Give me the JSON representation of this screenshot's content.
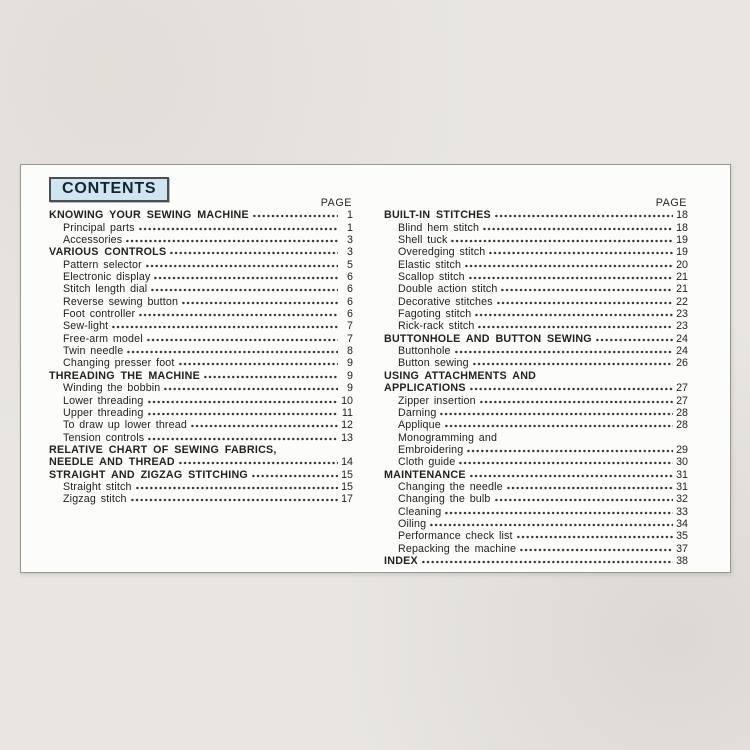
{
  "contents_label": "CONTENTS",
  "colors": {
    "contents_box_bg": "#cfe5f1",
    "sheet_bg": "#fcfcfa",
    "backdrop_bg": "#e9e6e2",
    "text": "#222220"
  },
  "columns": [
    {
      "page_label": "PAGE",
      "rows": [
        {
          "text": "KNOWING YOUR SEWING MACHINE",
          "style": "h",
          "page": "1"
        },
        {
          "text": "Principal parts",
          "style": "sub",
          "page": "1"
        },
        {
          "text": "Accessories",
          "style": "sub",
          "page": "3"
        },
        {
          "text": "VARIOUS CONTROLS",
          "style": "h",
          "page": "3"
        },
        {
          "text": "Pattern selector",
          "style": "sub",
          "page": "5"
        },
        {
          "text": "Electronic display",
          "style": "sub",
          "page": "6"
        },
        {
          "text": "Stitch length dial",
          "style": "sub",
          "page": "6"
        },
        {
          "text": "Reverse sewing button",
          "style": "sub",
          "page": "6"
        },
        {
          "text": "Foot controller",
          "style": "sub",
          "page": "6"
        },
        {
          "text": "Sew-light",
          "style": "sub",
          "page": "7"
        },
        {
          "text": "Free-arm model",
          "style": "sub",
          "page": "7"
        },
        {
          "text": "Twin needle",
          "style": "sub",
          "page": "8"
        },
        {
          "text": "Changing presser foot",
          "style": "sub",
          "page": "9"
        },
        {
          "text": "THREADING THE MACHINE",
          "style": "h",
          "page": "9"
        },
        {
          "text": "Winding the bobbin",
          "style": "sub",
          "page": "9"
        },
        {
          "text": "Lower threading",
          "style": "sub",
          "page": "10"
        },
        {
          "text": "Upper threading",
          "style": "sub",
          "page": "11"
        },
        {
          "text": "To draw up lower thread",
          "style": "sub",
          "page": "12"
        },
        {
          "text": "Tension controls",
          "style": "sub",
          "page": "13"
        },
        {
          "text": "RELATIVE CHART OF SEWING FABRICS,",
          "style": "h",
          "page": null
        },
        {
          "text": "NEEDLE AND THREAD",
          "style": "h",
          "page": "14"
        },
        {
          "text": "STRAIGHT AND ZIGZAG STITCHING",
          "style": "h",
          "page": "15"
        },
        {
          "text": "Straight stitch",
          "style": "sub",
          "page": "15"
        },
        {
          "text": "Zigzag stitch",
          "style": "sub",
          "page": "17"
        }
      ]
    },
    {
      "page_label": "PAGE",
      "rows": [
        {
          "text": "BUILT-IN STITCHES",
          "style": "h",
          "page": "18"
        },
        {
          "text": "Blind hem stitch",
          "style": "sub",
          "page": "18"
        },
        {
          "text": "Shell tuck",
          "style": "sub",
          "page": "19"
        },
        {
          "text": "Overedging stitch",
          "style": "sub",
          "page": "19"
        },
        {
          "text": "Elastic stitch",
          "style": "sub",
          "page": "20"
        },
        {
          "text": "Scallop stitch",
          "style": "sub",
          "page": "21"
        },
        {
          "text": "Double action stitch",
          "style": "sub",
          "page": "21"
        },
        {
          "text": "Decorative stitches",
          "style": "sub",
          "page": "22"
        },
        {
          "text": "Fagoting stitch",
          "style": "sub",
          "page": "23"
        },
        {
          "text": "Rick-rack stitch",
          "style": "sub",
          "page": "23"
        },
        {
          "text": "BUTTONHOLE AND BUTTON SEWING",
          "style": "h",
          "page": "24"
        },
        {
          "text": "Buttonhole",
          "style": "sub",
          "page": "24"
        },
        {
          "text": "Button sewing",
          "style": "sub",
          "page": "26"
        },
        {
          "text": "USING ATTACHMENTS AND",
          "style": "h",
          "page": null
        },
        {
          "text": "APPLICATIONS",
          "style": "h",
          "page": "27"
        },
        {
          "text": "Zipper insertion",
          "style": "sub",
          "page": "27"
        },
        {
          "text": "Darning",
          "style": "sub",
          "page": "28"
        },
        {
          "text": "Applique",
          "style": "sub",
          "page": "28"
        },
        {
          "text": "Monogramming and",
          "style": "sub",
          "page": null
        },
        {
          "text": "Embroidering",
          "style": "sub",
          "page": "29"
        },
        {
          "text": "Cloth guide",
          "style": "sub",
          "page": "30"
        },
        {
          "text": "MAINTENANCE",
          "style": "h",
          "page": "31"
        },
        {
          "text": "Changing the needle",
          "style": "sub",
          "page": "31"
        },
        {
          "text": "Changing the bulb",
          "style": "sub",
          "page": "32"
        },
        {
          "text": "Cleaning",
          "style": "sub",
          "page": "33"
        },
        {
          "text": "Oiling",
          "style": "sub",
          "page": "34"
        },
        {
          "text": "Performance check list",
          "style": "sub",
          "page": "35"
        },
        {
          "text": "Repacking the machine",
          "style": "sub",
          "page": "37"
        },
        {
          "text": "INDEX",
          "style": "h",
          "page": "38"
        }
      ]
    }
  ]
}
